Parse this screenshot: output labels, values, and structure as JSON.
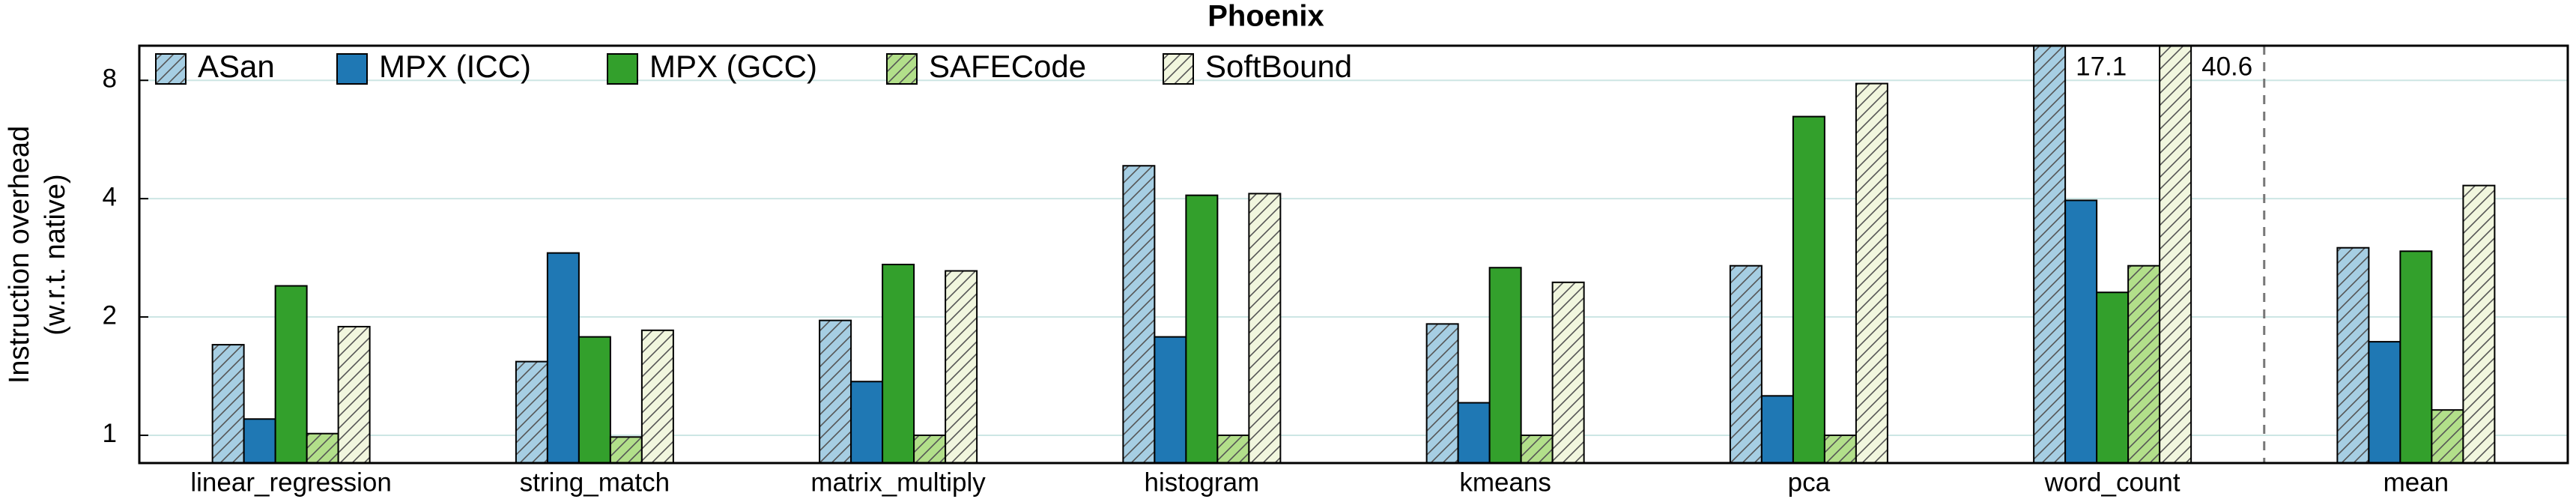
{
  "chart_data": {
    "type": "bar",
    "title": "Phoenix",
    "ylabel": [
      "Instruction overhead",
      "(w.r.t. native)"
    ],
    "categories": [
      "linear_regression",
      "string_match",
      "matrix_multiply",
      "histogram",
      "kmeans",
      "pca",
      "word_count",
      "mean"
    ],
    "series": [
      {
        "name": "ASan",
        "color": "#a6cee3",
        "hatch": true,
        "values": [
          1.7,
          1.54,
          1.96,
          4.85,
          1.92,
          2.7,
          17.1,
          3.0
        ],
        "value_labels": [
          null,
          null,
          null,
          null,
          null,
          null,
          "17.1",
          null
        ]
      },
      {
        "name": "MPX (ICC)",
        "color": "#1f78b4",
        "hatch": false,
        "values": [
          1.1,
          2.91,
          1.37,
          1.78,
          1.21,
          1.26,
          3.96,
          1.73
        ]
      },
      {
        "name": "MPX (GCC)",
        "color": "#33a02c",
        "hatch": false,
        "values": [
          2.4,
          1.78,
          2.72,
          4.08,
          2.67,
          6.47,
          2.31,
          2.94
        ]
      },
      {
        "name": "SAFECode",
        "color": "#b2df8a",
        "hatch": true,
        "values": [
          1.01,
          0.99,
          1.0,
          1.0,
          1.0,
          1.0,
          2.7,
          1.16
        ]
      },
      {
        "name": "SoftBound",
        "color": "#f1f6de",
        "hatch": true,
        "values": [
          1.89,
          1.85,
          2.62,
          4.12,
          2.45,
          7.85,
          40.6,
          4.32
        ],
        "value_labels": [
          null,
          null,
          null,
          null,
          null,
          null,
          "40.6",
          null
        ]
      }
    ],
    "log_scale": true,
    "ylim": [
      0.85,
      9.8
    ],
    "yticks": [
      1,
      2,
      4,
      8
    ],
    "grid": true,
    "legend": "top-left"
  }
}
